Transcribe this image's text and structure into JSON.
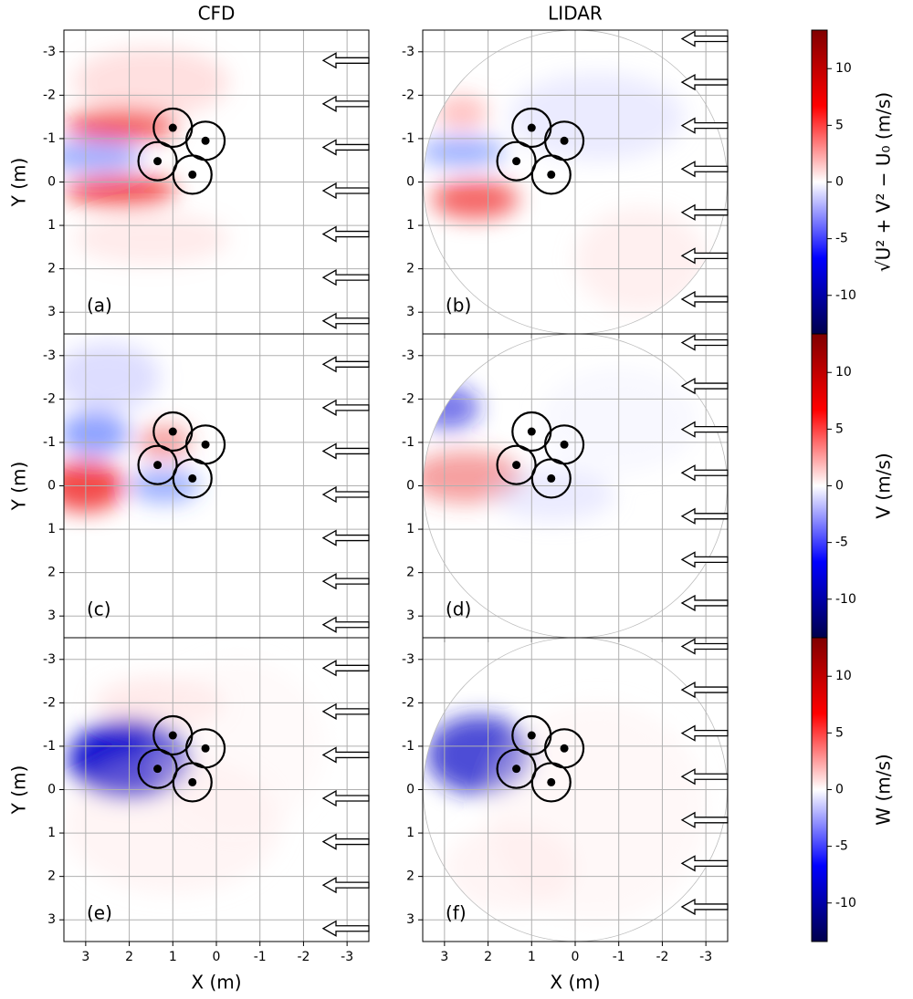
{
  "chart_data": [
    {
      "type": "heatmap",
      "title": "CFD",
      "label": "(a)",
      "ylabel": "Y (m)",
      "xlim": [
        3.5,
        -3.5
      ],
      "ylim": [
        3.5,
        -3.5
      ],
      "xticks": [
        3,
        2,
        1,
        0,
        -1,
        -2,
        -3
      ],
      "show_xticklabels": false,
      "yticks": [
        -3,
        -2,
        -1,
        0,
        1,
        2,
        3
      ],
      "grid": true,
      "circular": false,
      "points": {
        "x": [
          1.0,
          0.25,
          1.35,
          0.55
        ],
        "y": [
          -1.25,
          -0.95,
          -0.48,
          -0.17
        ]
      }
    },
    {
      "type": "heatmap",
      "title": "LIDAR",
      "label": "(b)",
      "xlim": [
        3.5,
        -3.5
      ],
      "ylim": [
        3.5,
        -3.5
      ],
      "xticks": [
        3,
        2,
        1,
        0,
        -1,
        -2,
        -3
      ],
      "show_xticklabels": false,
      "yticks": [
        -3,
        -2,
        -1,
        0,
        1,
        2,
        3
      ],
      "grid": true,
      "circular": true,
      "points": {
        "x": [
          1.0,
          0.25,
          1.35,
          0.55
        ],
        "y": [
          -1.25,
          -0.95,
          -0.48,
          -0.17
        ]
      }
    },
    {
      "type": "heatmap",
      "label": "(c)",
      "ylabel": "Y (m)",
      "xlim": [
        3.5,
        -3.5
      ],
      "ylim": [
        3.5,
        -3.5
      ],
      "xticks": [
        3,
        2,
        1,
        0,
        -1,
        -2,
        -3
      ],
      "show_xticklabels": false,
      "yticks": [
        -3,
        -2,
        -1,
        0,
        1,
        2,
        3
      ],
      "grid": true,
      "circular": false,
      "points": {
        "x": [
          1.0,
          0.25,
          1.35,
          0.55
        ],
        "y": [
          -1.25,
          -0.95,
          -0.48,
          -0.17
        ]
      }
    },
    {
      "type": "heatmap",
      "label": "(d)",
      "xlim": [
        3.5,
        -3.5
      ],
      "ylim": [
        3.5,
        -3.5
      ],
      "xticks": [
        3,
        2,
        1,
        0,
        -1,
        -2,
        -3
      ],
      "show_xticklabels": false,
      "yticks": [
        -3,
        -2,
        -1,
        0,
        1,
        2,
        3
      ],
      "grid": true,
      "circular": true,
      "points": {
        "x": [
          1.0,
          0.25,
          1.35,
          0.55
        ],
        "y": [
          -1.25,
          -0.95,
          -0.48,
          -0.17
        ]
      }
    },
    {
      "type": "heatmap",
      "label": "(e)",
      "xlabel": "X (m)",
      "ylabel": "Y (m)",
      "xlim": [
        3.5,
        -3.5
      ],
      "ylim": [
        3.5,
        -3.5
      ],
      "xticks": [
        3,
        2,
        1,
        0,
        -1,
        -2,
        -3
      ],
      "show_xticklabels": true,
      "yticks": [
        -3,
        -2,
        -1,
        0,
        1,
        2,
        3
      ],
      "grid": true,
      "circular": false,
      "points": {
        "x": [
          1.0,
          0.25,
          1.35,
          0.55
        ],
        "y": [
          -1.25,
          -0.95,
          -0.48,
          -0.17
        ]
      }
    },
    {
      "type": "heatmap",
      "label": "(f)",
      "xlabel": "X (m)",
      "xlim": [
        3.5,
        -3.5
      ],
      "ylim": [
        3.5,
        -3.5
      ],
      "xticks": [
        3,
        2,
        1,
        0,
        -1,
        -2,
        -3
      ],
      "show_xticklabels": true,
      "yticks": [
        -3,
        -2,
        -1,
        0,
        1,
        2,
        3
      ],
      "grid": true,
      "circular": true,
      "points": {
        "x": [
          1.0,
          0.25,
          1.35,
          0.55
        ],
        "y": [
          -1.25,
          -0.95,
          -0.48,
          -0.17
        ]
      }
    },
    {
      "type": "colorbar",
      "label": "√U² + V² − U₀ (m/s)",
      "ylim": [
        -13.4,
        13.4
      ],
      "yticks": [
        -10,
        -5,
        0,
        5,
        10
      ]
    },
    {
      "type": "colorbar",
      "label": "V (m/s)",
      "ylim": [
        -13.4,
        13.4
      ],
      "yticks": [
        -10,
        -5,
        0,
        5,
        10
      ]
    },
    {
      "type": "colorbar",
      "label": "W (m/s)",
      "ylim": [
        -13.4,
        13.4
      ],
      "yticks": [
        -10,
        -5,
        0,
        5,
        10
      ]
    }
  ]
}
